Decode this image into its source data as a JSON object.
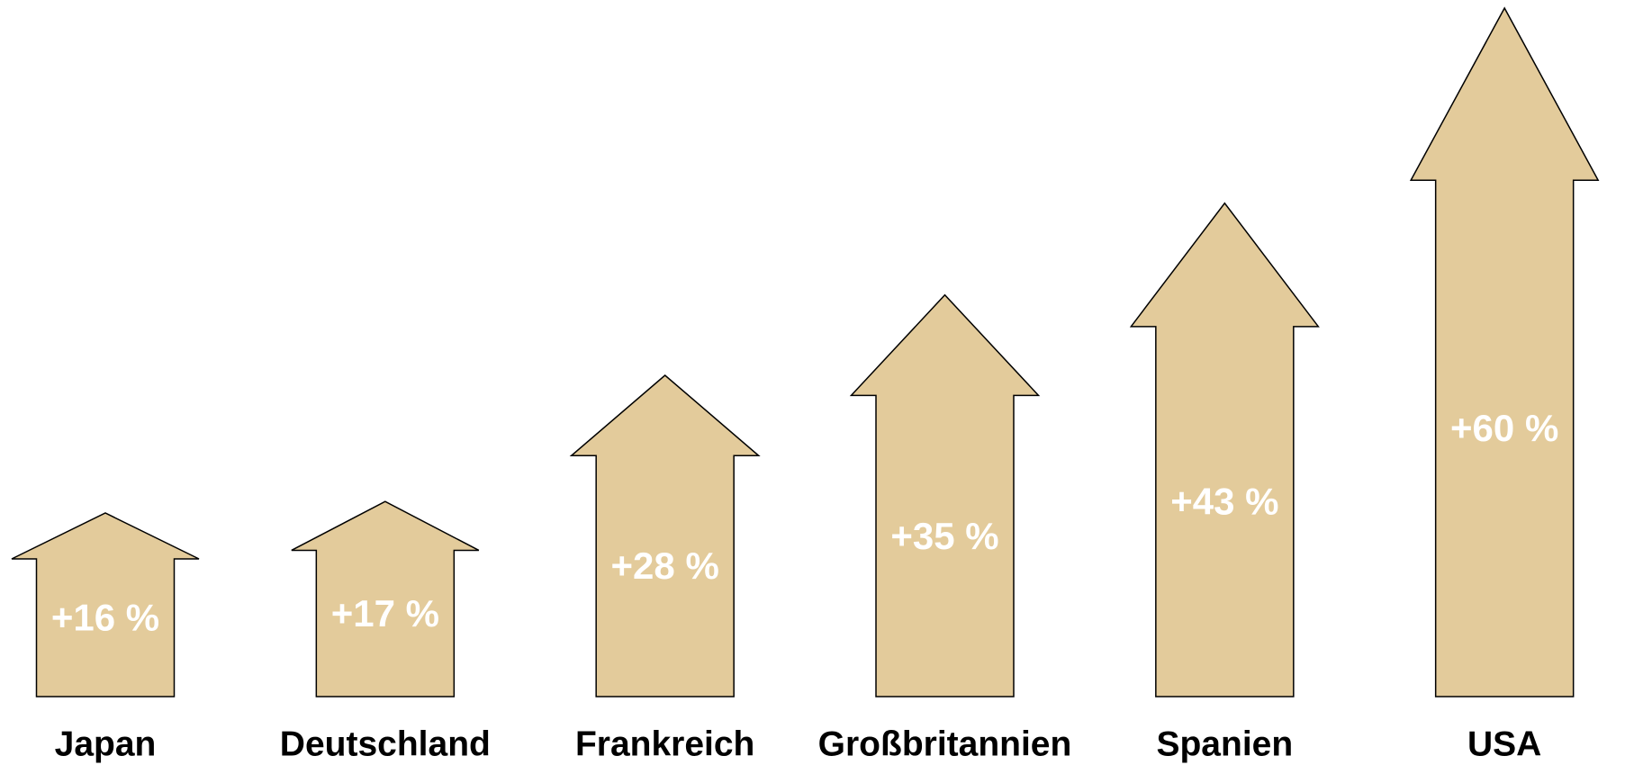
{
  "chart_data": {
    "type": "arrow",
    "categories": [
      "Japan",
      "Deutschland",
      "Frankreich",
      "Großbritannien",
      "Spanien",
      "USA"
    ],
    "values": [
      16,
      17,
      28,
      35,
      43,
      60
    ],
    "value_labels": [
      "+16 %",
      "+17 %",
      "+28 %",
      "+35 %",
      "+43 %",
      "+60 %"
    ],
    "color": "#e3cb9b"
  }
}
